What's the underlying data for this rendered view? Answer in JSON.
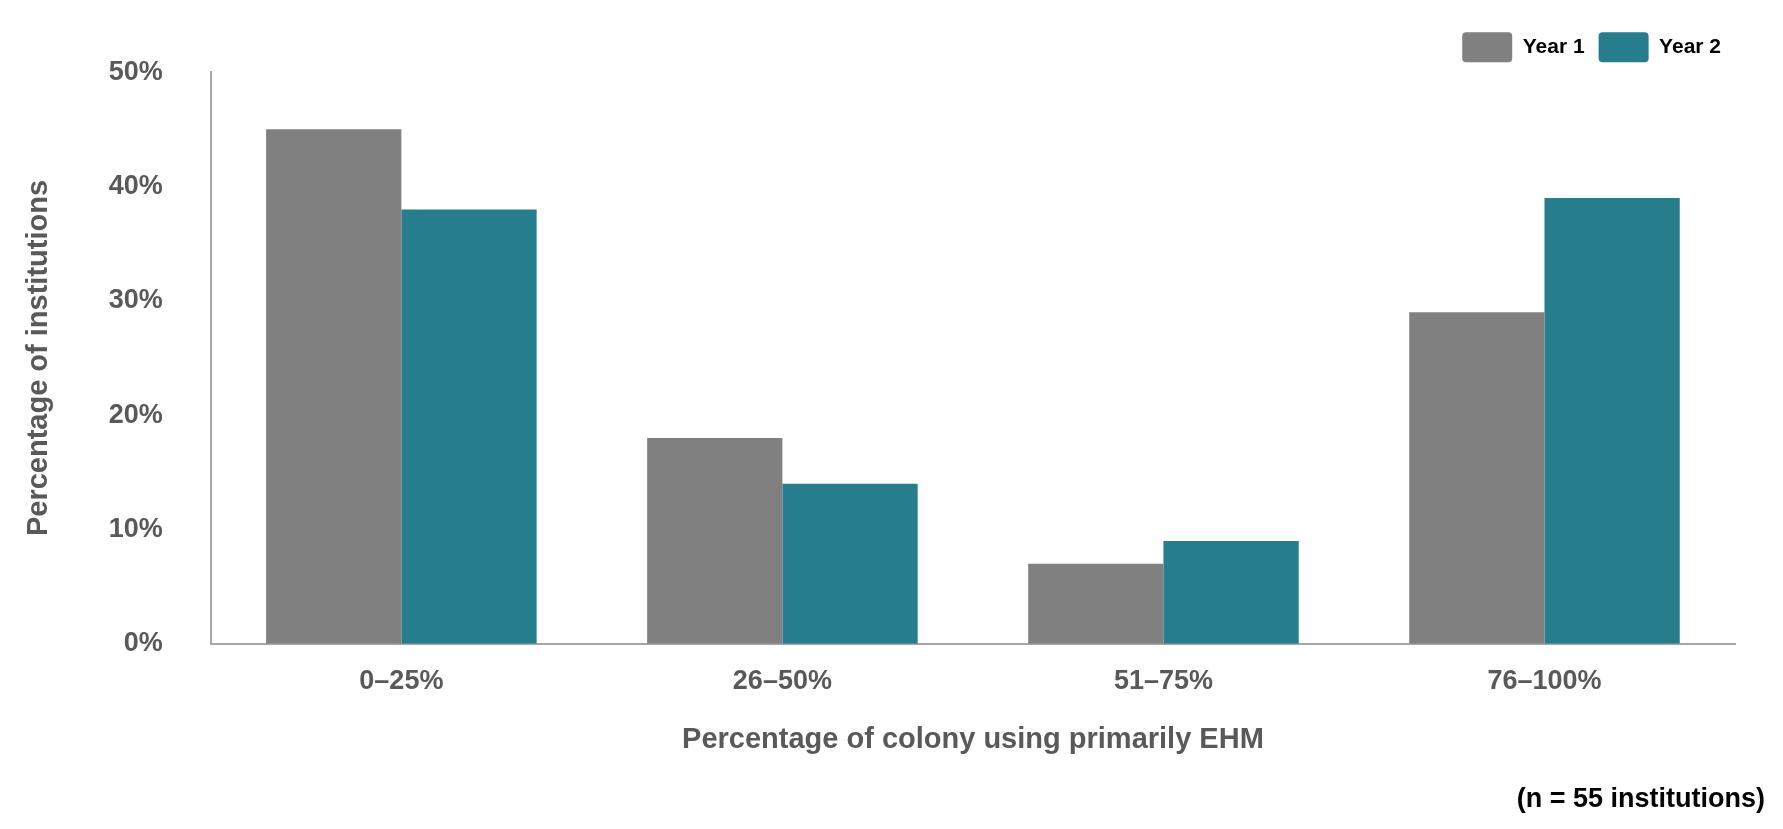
{
  "chart_data": {
    "type": "bar",
    "xlabel": "Percentage of colony using primarily EHM",
    "ylabel": "Percentage of institutions",
    "categories": [
      "0–25%",
      "26–50%",
      "51–75%",
      "76–100%"
    ],
    "series": [
      {
        "name": "Year 1",
        "color": "#808080",
        "values": [
          45,
          18,
          7,
          29
        ]
      },
      {
        "name": "Year 2",
        "color": "#267d8b",
        "values": [
          38,
          14,
          9,
          39
        ]
      }
    ],
    "ylim": [
      0,
      50
    ],
    "yticks": [
      {
        "value": 0,
        "label": "0%"
      },
      {
        "value": 10,
        "label": "10%"
      },
      {
        "value": 20,
        "label": "20%"
      },
      {
        "value": 30,
        "label": "30%"
      },
      {
        "value": 40,
        "label": "40%"
      },
      {
        "value": 50,
        "label": "50%"
      }
    ],
    "grid": false,
    "legend": "top right",
    "annotations": [
      "(n = 55 institutions)"
    ]
  }
}
